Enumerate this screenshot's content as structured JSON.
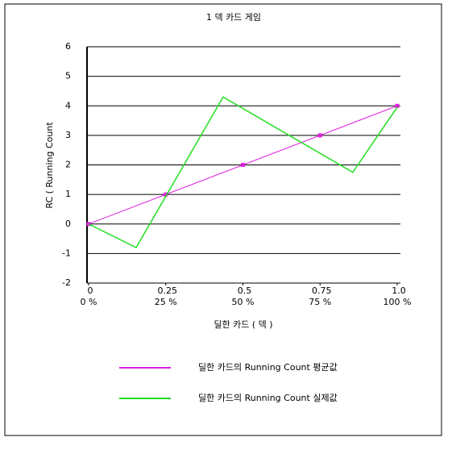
{
  "chart_data": {
    "type": "line",
    "title": "1 덱 카드 게임",
    "y_label": "RC ( Running Count",
    "x_label": "딜한 카드 ( 덱 )",
    "xlim": [
      0,
      1
    ],
    "ylim": [
      -2,
      6
    ],
    "xticks": [
      {
        "value": 0,
        "label": "0"
      },
      {
        "value": 0.25,
        "label": "0.25"
      },
      {
        "value": 0.5,
        "label": "0.5"
      },
      {
        "value": 0.75,
        "label": "0.75"
      },
      {
        "value": 1,
        "label": "1.0"
      }
    ],
    "xtick_sublabels": [
      "0 %",
      "25 %",
      "50 %",
      "75 %",
      "100 %"
    ],
    "yticks": [
      -2,
      -1,
      0,
      1,
      2,
      3,
      4,
      5,
      6
    ],
    "grid": true,
    "series": [
      {
        "name": "딜한 카드의 Running Count 평균값",
        "color": "#e020e0",
        "markers": true,
        "x": [
          0,
          0.25,
          0.5,
          0.75,
          1
        ],
        "values": [
          0,
          1,
          2,
          3,
          4
        ]
      },
      {
        "name": "딜한 카드의 Running Count 실제값",
        "color": "#22dd22",
        "markers": false,
        "x": [
          0,
          0.154,
          0.436,
          0.856,
          1
        ],
        "values": [
          0,
          -0.8,
          4.3,
          1.75,
          3.95
        ]
      }
    ]
  }
}
